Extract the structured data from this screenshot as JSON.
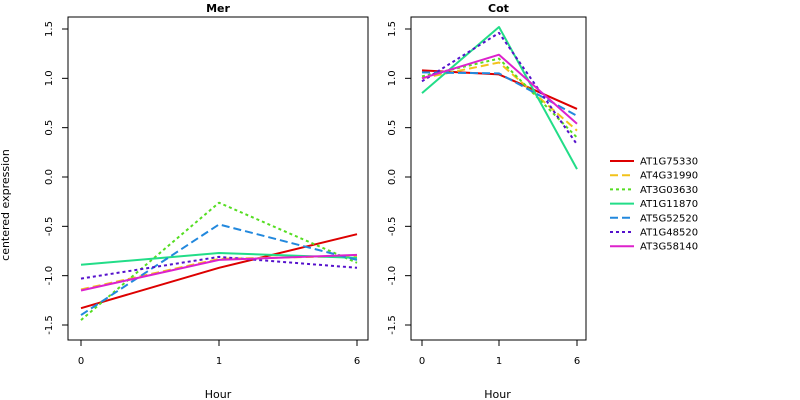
{
  "ylabel": "centered expression",
  "legend": {
    "placement": "right",
    "entries": [
      {
        "name": "AT1G75330",
        "color": "#dd0000",
        "dash": "solid"
      },
      {
        "name": "AT4G31990",
        "color": "#f2c21a",
        "dash": "dashed"
      },
      {
        "name": "AT3G03630",
        "color": "#55dd22",
        "dash": "dotted"
      },
      {
        "name": "AT1G11870",
        "color": "#22dd88",
        "dash": "solid"
      },
      {
        "name": "AT5G52520",
        "color": "#2288dd",
        "dash": "dashed"
      },
      {
        "name": "AT1G48520",
        "color": "#5511cc",
        "dash": "dotted"
      },
      {
        "name": "AT3G58140",
        "color": "#dd22cc",
        "dash": "solid"
      }
    ]
  },
  "chart_data": [
    {
      "type": "line",
      "title": "Mer",
      "xlabel": "Hour",
      "ylabel": "centered expression",
      "x": [
        "0",
        "1",
        "6"
      ],
      "ylim": [
        -1.5,
        1.6
      ],
      "yticks": [
        "-1.5",
        "-1.0",
        "-0.5",
        "0.0",
        "0.5",
        "1.0",
        "1.5"
      ],
      "series": [
        {
          "name": "AT1G75330",
          "values": [
            -1.33,
            -0.92,
            -0.58
          ]
        },
        {
          "name": "AT4G31990",
          "values": [
            -1.14,
            -0.83,
            -0.8
          ]
        },
        {
          "name": "AT3G03630",
          "values": [
            -1.45,
            -0.26,
            -0.87
          ]
        },
        {
          "name": "AT1G11870",
          "values": [
            -0.89,
            -0.77,
            -0.82
          ]
        },
        {
          "name": "AT5G52520",
          "values": [
            -1.4,
            -0.48,
            -0.84
          ]
        },
        {
          "name": "AT1G48520",
          "values": [
            -1.03,
            -0.81,
            -0.92
          ]
        },
        {
          "name": "AT3G58140",
          "values": [
            -1.15,
            -0.84,
            -0.79
          ]
        }
      ]
    },
    {
      "type": "line",
      "title": "Cot",
      "xlabel": "Hour",
      "ylabel": "",
      "x": [
        "0",
        "1",
        "6"
      ],
      "ylim": [
        -1.5,
        1.6
      ],
      "yticks": [
        "-1.5",
        "-1.0",
        "-0.5",
        "0.0",
        "0.5",
        "1.0",
        "1.5"
      ],
      "series": [
        {
          "name": "AT1G75330",
          "values": [
            1.08,
            1.04,
            0.69
          ]
        },
        {
          "name": "AT4G31990",
          "values": [
            1.0,
            1.16,
            0.47
          ]
        },
        {
          "name": "AT3G03630",
          "values": [
            1.02,
            1.2,
            0.4
          ]
        },
        {
          "name": "AT1G11870",
          "values": [
            0.85,
            1.52,
            0.08
          ]
        },
        {
          "name": "AT5G52520",
          "values": [
            1.06,
            1.05,
            0.62
          ]
        },
        {
          "name": "AT1G48520",
          "values": [
            0.97,
            1.46,
            0.33
          ]
        },
        {
          "name": "AT3G58140",
          "values": [
            1.0,
            1.24,
            0.54
          ]
        }
      ]
    }
  ]
}
